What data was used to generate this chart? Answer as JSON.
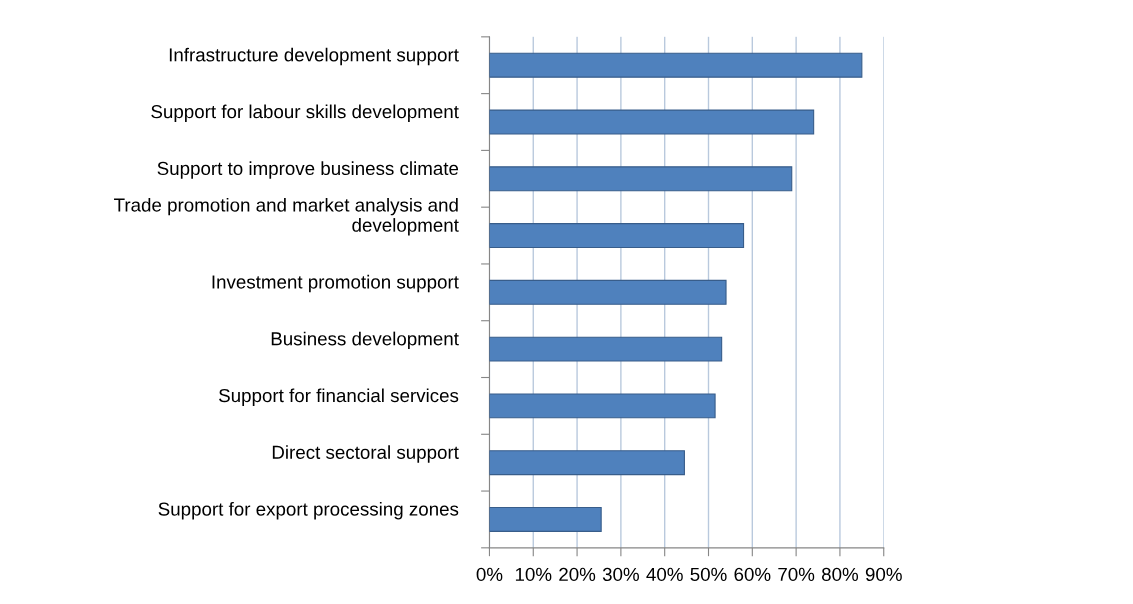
{
  "chart_data": {
    "type": "bar",
    "orientation": "horizontal",
    "categories": [
      "Infrastructure development support",
      "Support for labour skills development",
      "Support to improve business climate",
      "Trade promotion and market analysis and\ndevelopment",
      "Investment promotion support",
      "Business development",
      "Support for financial services",
      "Direct sectoral support",
      "Support for export processing zones"
    ],
    "values": [
      85,
      74,
      69,
      58,
      54,
      53,
      51.5,
      44.5,
      25.5
    ],
    "color": "#4f81bd",
    "xlim": [
      0,
      90
    ],
    "xticks": [
      {
        "value": 0,
        "label": "0%"
      },
      {
        "value": 10,
        "label": "10%"
      },
      {
        "value": 20,
        "label": "20%"
      },
      {
        "value": 30,
        "label": "30%"
      },
      {
        "value": 40,
        "label": "40%"
      },
      {
        "value": 50,
        "label": "50%"
      },
      {
        "value": 60,
        "label": "60%"
      },
      {
        "value": 70,
        "label": "70%"
      },
      {
        "value": 80,
        "label": "80%"
      },
      {
        "value": 90,
        "label": "90%"
      }
    ],
    "grid": "x",
    "legend": false
  }
}
